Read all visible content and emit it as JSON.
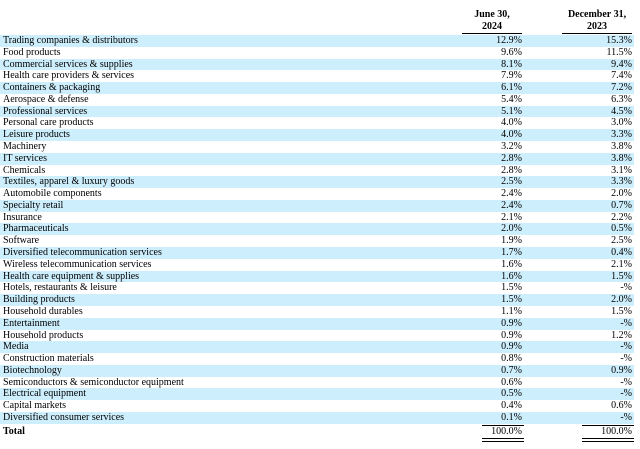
{
  "header": {
    "columns": [
      [
        "June 30,",
        "2024"
      ],
      [
        "December 31,",
        "2023"
      ]
    ]
  },
  "table": {
    "rows": [
      [
        "Trading companies & distributors",
        "12.9%",
        "15.3%"
      ],
      [
        "Food products",
        "9.6%",
        "11.5%"
      ],
      [
        "Commercial services & supplies",
        "8.1%",
        "9.4%"
      ],
      [
        "Health care providers & services",
        "7.9%",
        "7.4%"
      ],
      [
        "Containers & packaging",
        "6.1%",
        "7.2%"
      ],
      [
        "Aerospace & defense",
        "5.4%",
        "6.3%"
      ],
      [
        "Professional services",
        "5.1%",
        "4.5%"
      ],
      [
        "Personal care products",
        "4.0%",
        "3.0%"
      ],
      [
        "Leisure products",
        "4.0%",
        "3.3%"
      ],
      [
        "Machinery",
        "3.2%",
        "3.8%"
      ],
      [
        "IT services",
        "2.8%",
        "3.8%"
      ],
      [
        "Chemicals",
        "2.8%",
        "3.1%"
      ],
      [
        "Textiles, apparel & luxury goods",
        "2.5%",
        "3.3%"
      ],
      [
        "Automobile components",
        "2.4%",
        "2.0%"
      ],
      [
        "Specialty retail",
        "2.4%",
        "0.7%"
      ],
      [
        "Insurance",
        "2.1%",
        "2.2%"
      ],
      [
        "Pharmaceuticals",
        "2.0%",
        "0.5%"
      ],
      [
        "Software",
        "1.9%",
        "2.5%"
      ],
      [
        "Diversified telecommunication services",
        "1.7%",
        "0.4%"
      ],
      [
        "Wireless telecommunication services",
        "1.6%",
        "2.1%"
      ],
      [
        "Health care equipment & supplies",
        "1.6%",
        "1.5%"
      ],
      [
        "Hotels, restaurants & leisure",
        "1.5%",
        "-%"
      ],
      [
        "Building products",
        "1.5%",
        "2.0%"
      ],
      [
        "Household durables",
        "1.1%",
        "1.5%"
      ],
      [
        "Entertainment",
        "0.9%",
        "-%"
      ],
      [
        "Household products",
        "0.9%",
        "1.2%"
      ],
      [
        "Media",
        "0.9%",
        "-%"
      ],
      [
        "Construction materials",
        "0.8%",
        "-%"
      ],
      [
        "Biotechnology",
        "0.7%",
        "0.9%"
      ],
      [
        "Semiconductors & semiconductor equipment",
        "0.6%",
        "-%"
      ],
      [
        "Electrical equipment",
        "0.5%",
        "-%"
      ],
      [
        "Capital markets",
        "0.4%",
        "0.6%"
      ],
      [
        "Diversified consumer services",
        "0.1%",
        "-%"
      ]
    ],
    "total": [
      "Total",
      "100.0%",
      "100.0%"
    ]
  }
}
